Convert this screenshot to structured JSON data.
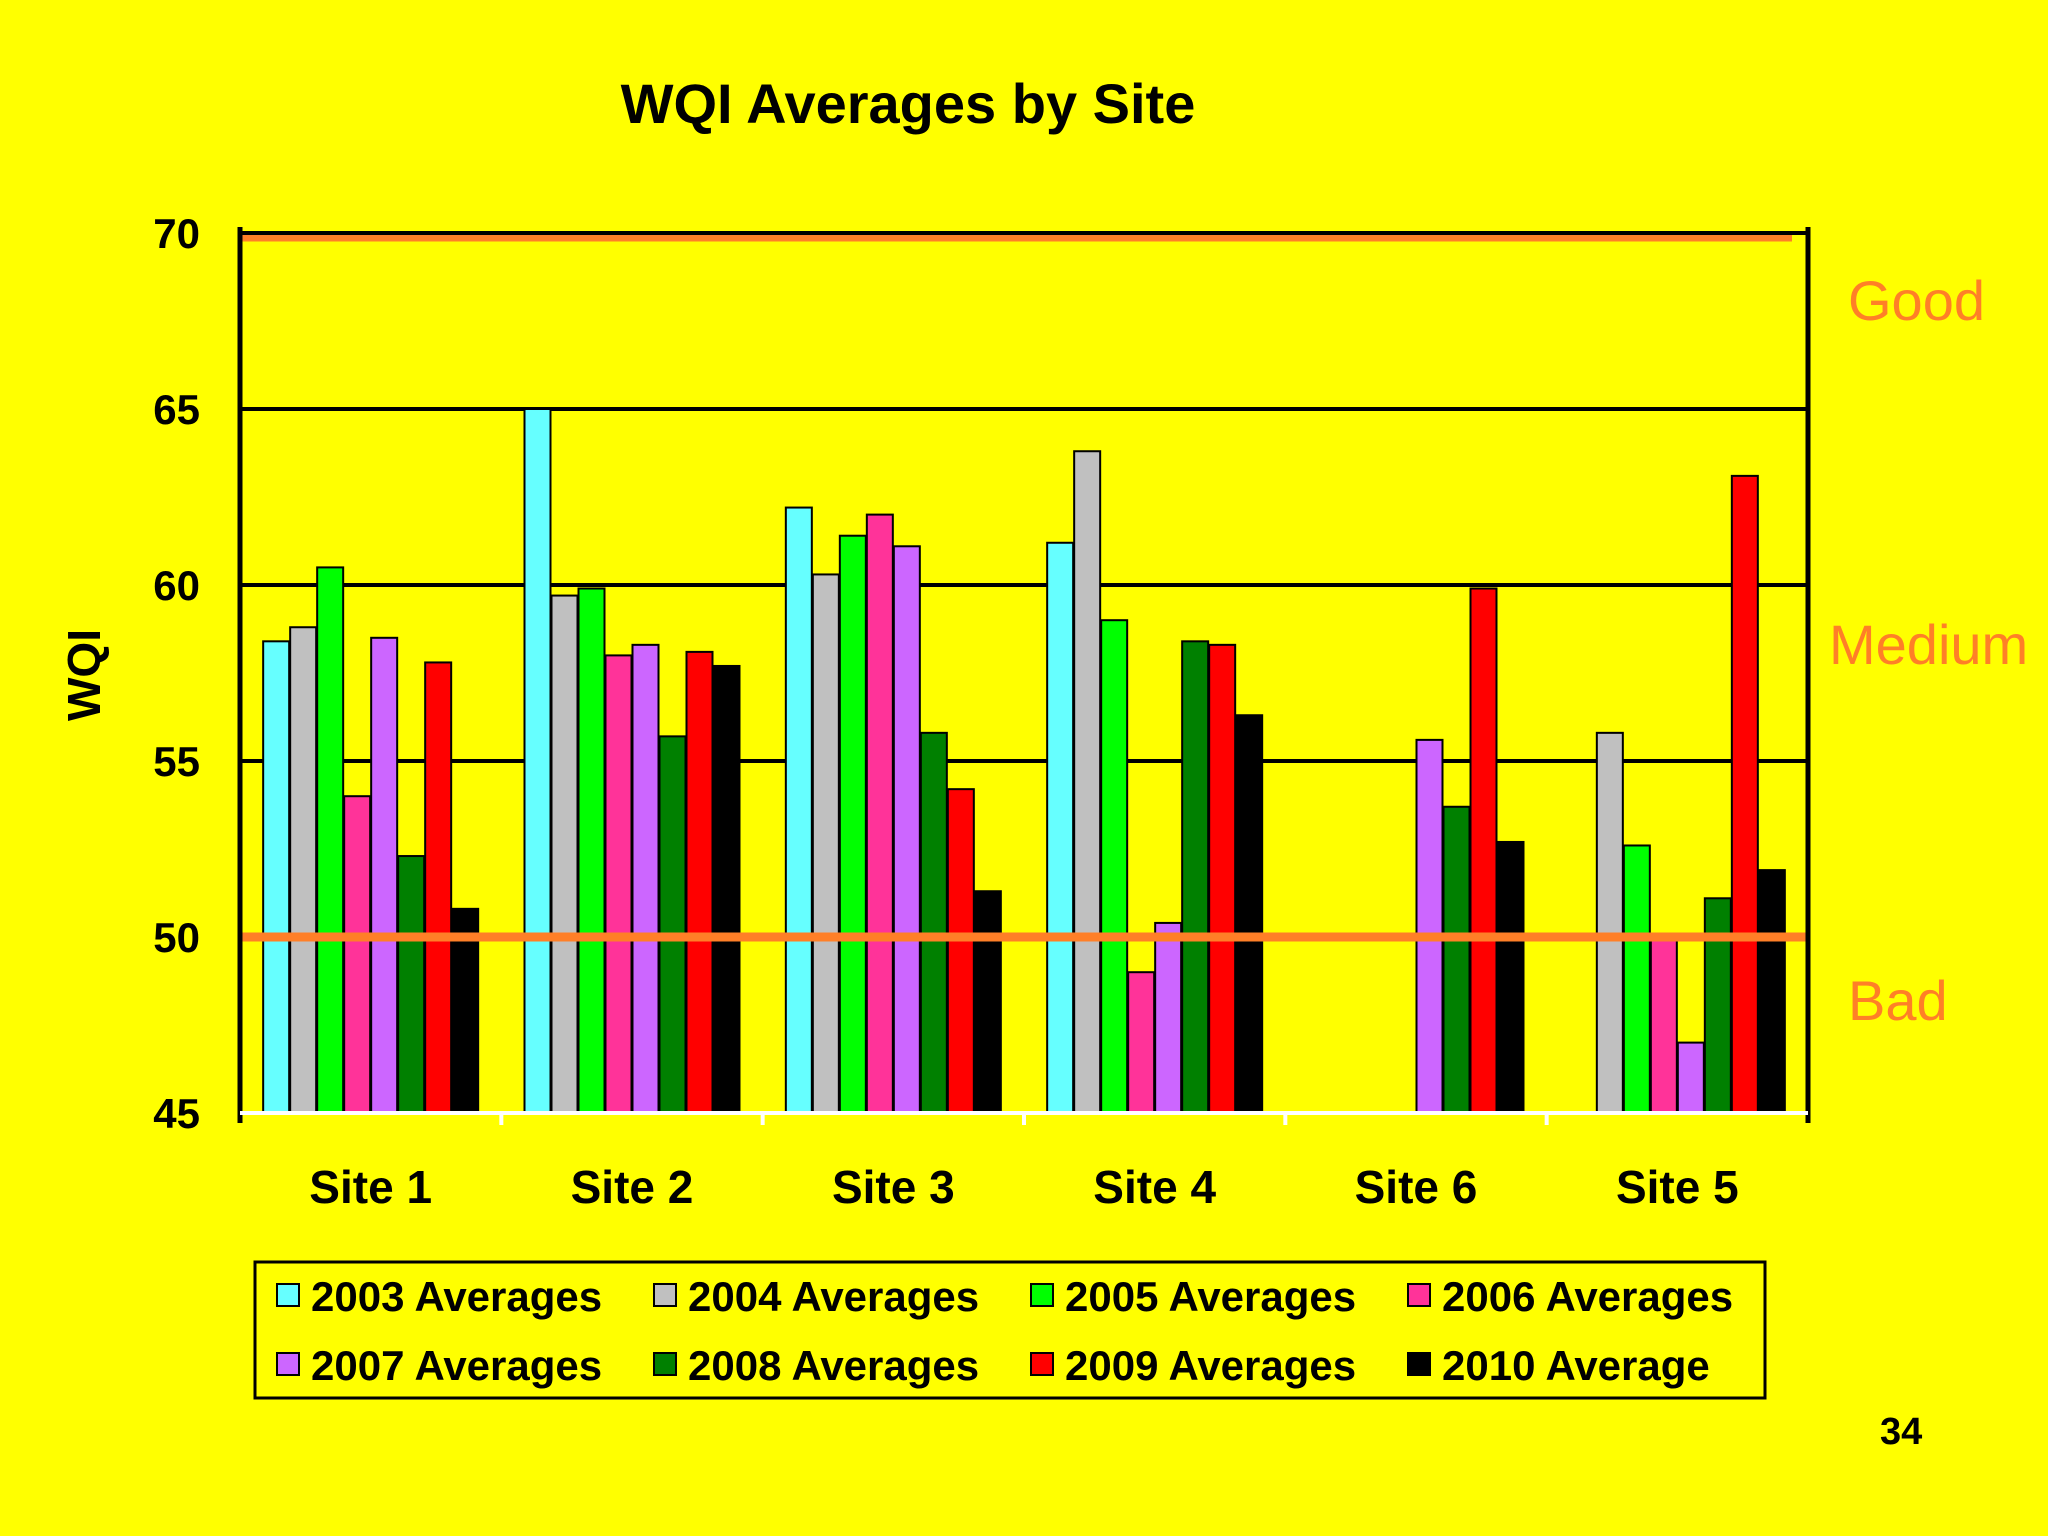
{
  "chart_data": {
    "type": "bar",
    "title": "WQI Averages by Site",
    "ylabel": "WQI",
    "xlabel": "",
    "ylim": [
      45,
      70
    ],
    "yticks": [
      45,
      50,
      55,
      60,
      65,
      70
    ],
    "grid": true,
    "legend_position": "bottom",
    "categories": [
      "Site 1",
      "Site 2",
      "Site 3",
      "Site 4",
      "Site 6",
      "Site 5"
    ],
    "series": [
      {
        "name": "2003 Averages",
        "color": "#66ffff",
        "values": [
          58.4,
          65.0,
          62.2,
          61.2,
          null,
          null
        ]
      },
      {
        "name": "2004 Averages",
        "color": "#c0c0c0",
        "values": [
          58.8,
          59.7,
          60.3,
          63.8,
          null,
          55.8
        ]
      },
      {
        "name": "2005 Averages",
        "color": "#00ff00",
        "values": [
          60.5,
          59.9,
          61.4,
          59.0,
          null,
          52.6
        ]
      },
      {
        "name": "2006 Averages",
        "color": "#ff3399",
        "values": [
          54.0,
          58.0,
          62.0,
          49.0,
          null,
          50.0
        ]
      },
      {
        "name": "2007 Averages",
        "color": "#cc66ff",
        "values": [
          58.5,
          58.3,
          61.1,
          50.4,
          55.6,
          47.0
        ]
      },
      {
        "name": "2008 Averages",
        "color": "#008000",
        "values": [
          52.3,
          55.7,
          55.8,
          58.4,
          53.7,
          51.1
        ]
      },
      {
        "name": "2009 Averages",
        "color": "#ff0000",
        "values": [
          57.8,
          58.1,
          54.2,
          58.3,
          59.9,
          63.1
        ]
      },
      {
        "name": "2010 Average",
        "color": "#000000",
        "values": [
          50.8,
          57.7,
          51.3,
          56.3,
          52.7,
          51.9
        ]
      }
    ],
    "thresholds": [
      {
        "value": 70,
        "color": "#ff7f27"
      },
      {
        "value": 50,
        "color": "#ff7f27"
      }
    ],
    "zone_labels": [
      "Good",
      "Medium",
      "Bad"
    ]
  },
  "page_number": "34"
}
